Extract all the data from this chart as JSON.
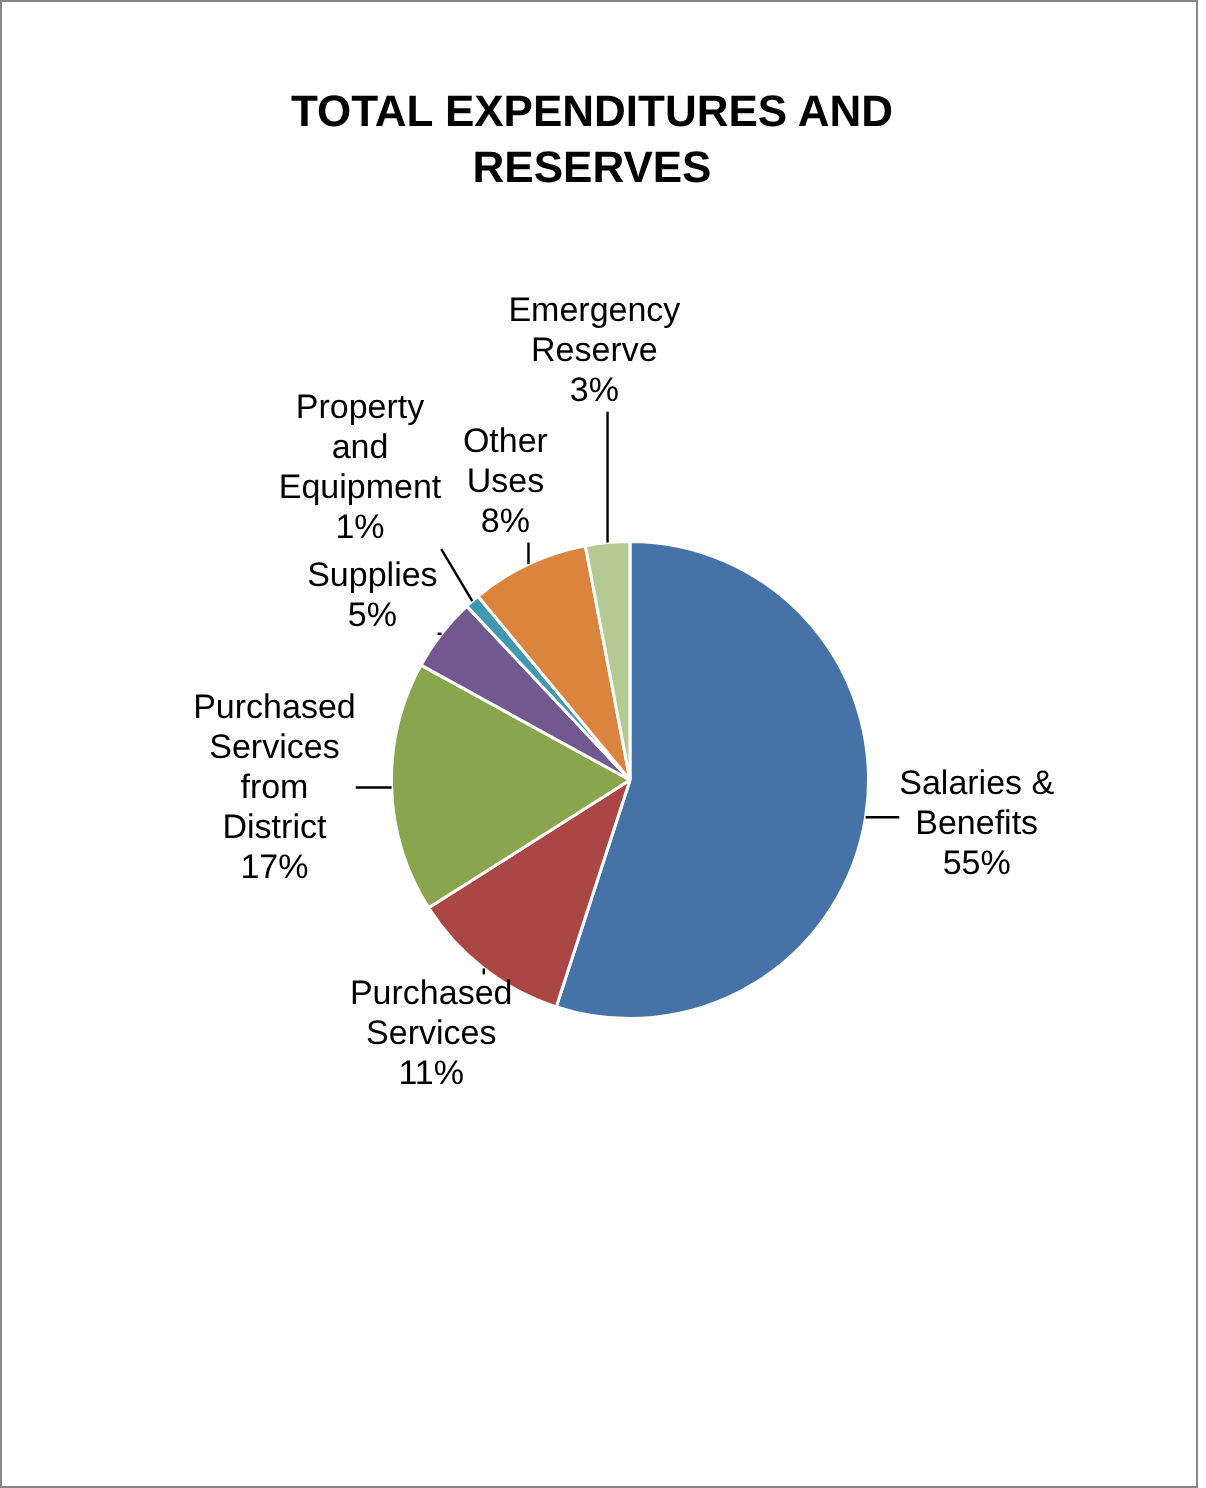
{
  "chart_data": {
    "type": "pie",
    "title": "TOTAL EXPENDITURES AND RESERVES",
    "categories": [
      "Salaries & Benefits",
      "Purchased Services",
      "Purchased Services from District",
      "Supplies",
      "Property and Equipment",
      "Other Uses",
      "Emergency Reserve"
    ],
    "values": [
      55,
      11,
      17,
      5,
      1,
      8,
      3
    ],
    "colors": [
      "#4572a7",
      "#aa4643",
      "#89a54e",
      "#71588f",
      "#4198af",
      "#db843d",
      "#b5ca92"
    ],
    "value_labels": [
      "55%",
      "11%",
      "17%",
      "5%",
      "1%",
      "8%",
      "3%"
    ],
    "legend": false
  }
}
